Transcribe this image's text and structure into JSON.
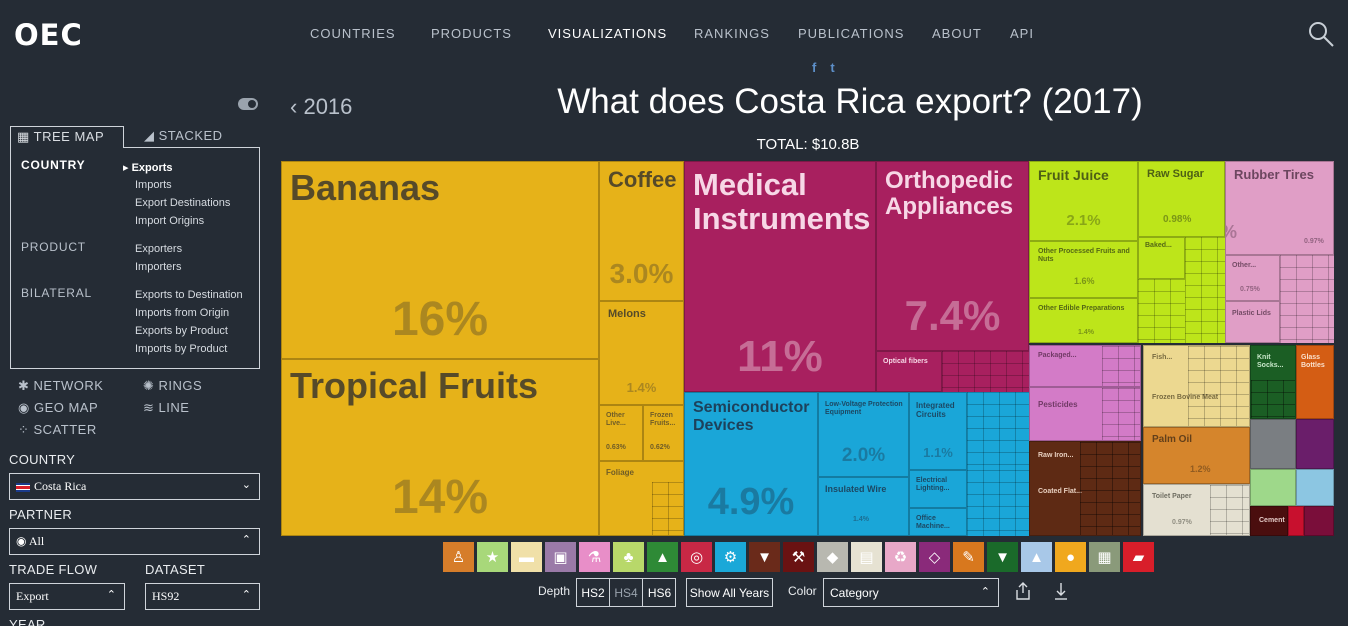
{
  "header": {
    "logo": "OEC",
    "nav": [
      "COUNTRIES",
      "PRODUCTS",
      "VISUALIZATIONS",
      "RANKINGS",
      "PUBLICATIONS",
      "ABOUT",
      "API"
    ],
    "active_nav": "VISUALIZATIONS",
    "social": {
      "facebook": "f",
      "twitter": "t"
    }
  },
  "title_area": {
    "prev_year": "2016",
    "title": "What does Costa Rica export? (2017)",
    "total": "TOTAL: $10.8B"
  },
  "sidebar": {
    "tabs": {
      "treemap": "TREE MAP",
      "stacked": "STACKED"
    },
    "categories": {
      "country": "COUNTRY",
      "product": "PRODUCT",
      "bilateral": "BILATERAL"
    },
    "country_items": [
      "Exports",
      "Imports",
      "Export Destinations",
      "Import Origins"
    ],
    "product_items": [
      "Exporters",
      "Importers"
    ],
    "bilateral_items": [
      "Exports to Destination",
      "Imports from Origin",
      "Exports by Product",
      "Imports by Product"
    ],
    "viz_types": {
      "network": "NETWORK",
      "rings": "RINGS",
      "geomap": "GEO MAP",
      "line": "LINE",
      "scatter": "SCATTER"
    },
    "filters": {
      "country_label": "COUNTRY",
      "country_value": "Costa Rica",
      "partner_label": "PARTNER",
      "partner_value": "All",
      "trade_flow_label": "TRADE FLOW",
      "trade_flow_value": "Export",
      "dataset_label": "DATASET",
      "dataset_value": "HS92",
      "year_label": "YEAR"
    }
  },
  "treemap": {
    "bananas": {
      "label": "Bananas",
      "pct": "16%"
    },
    "tropical": {
      "label": "Tropical Fruits",
      "pct": "14%"
    },
    "coffee": {
      "label": "Coffee",
      "pct": "3.0%"
    },
    "melons": {
      "label": "Melons",
      "pct": "1.4%"
    },
    "other_live": {
      "label": "Other Live...",
      "pct": "0.63%"
    },
    "frozen_fruits": {
      "label": "Frozen Fruits...",
      "pct": "0.62%"
    },
    "foliage": {
      "label": "Foliage"
    },
    "medical": {
      "label": "Medical Instruments",
      "pct": "11%"
    },
    "ortho": {
      "label": "Orthopedic Appliances",
      "pct": "7.4%"
    },
    "optical": {
      "label": "Optical fibers"
    },
    "semi": {
      "label": "Semiconductor Devices",
      "pct": "4.9%"
    },
    "lowvolt": {
      "label": "Low-Voltage Protection Equipment",
      "pct": "2.0%"
    },
    "ic": {
      "label": "Integrated Circuits",
      "pct": "1.1%"
    },
    "insulated": {
      "label": "Insulated Wire",
      "pct": "1.4%"
    },
    "electrical": {
      "label": "Electrical Lighting..."
    },
    "office": {
      "label": "Office Machine..."
    },
    "fruit_juice": {
      "label": "Fruit Juice",
      "pct": "2.1%"
    },
    "raw_sugar": {
      "label": "Raw Sugar",
      "pct": "0.98%"
    },
    "baked": {
      "label": "Baked..."
    },
    "other_processed": {
      "label": "Other Processed Fruits and Nuts",
      "pct": "1.6%"
    },
    "other_edible": {
      "label": "Other Edible Preparations",
      "pct": "1.4%"
    },
    "rubber": {
      "label": "Rubber Tires",
      "pct": "1.6%"
    },
    "rubber_small": {
      "pct": "0.97%"
    },
    "other_pink": {
      "label": "Other...",
      "pct": "0.75%"
    },
    "plastic_lids": {
      "label": "Plastic Lids"
    },
    "packaged": {
      "label": "Packaged..."
    },
    "pesticides": {
      "label": "Pesticides"
    },
    "fish": {
      "label": "Fish..."
    },
    "frozen_bovine": {
      "label": "Frozen Bovine Meat"
    },
    "knit": {
      "label": "Knit Socks..."
    },
    "glass": {
      "label": "Glass Bottles"
    },
    "palm_oil": {
      "label": "Palm Oil",
      "pct": "1.2%"
    },
    "raw_iron": {
      "label": "Raw Iron..."
    },
    "coated_flat": {
      "label": "Coated Flat..."
    },
    "toilet": {
      "label": "Toilet Paper",
      "pct": "0.97%"
    },
    "cement": {
      "label": "Cement"
    }
  },
  "category_icons": [
    {
      "name": "animal-products-icon",
      "color": "#d67d2a",
      "glyph": "♙"
    },
    {
      "name": "vegetable-products-icon",
      "color": "#a8d87a",
      "glyph": "★"
    },
    {
      "name": "animal-hides-icon",
      "color": "#f0e0a8",
      "glyph": "▬"
    },
    {
      "name": "foodstuffs-icon",
      "color": "#9a7aa8",
      "glyph": "▣"
    },
    {
      "name": "chemical-products-icon",
      "color": "#e88ec8",
      "glyph": "⚗"
    },
    {
      "name": "wood-products-icon",
      "color": "#b8d86a",
      "glyph": "♣"
    },
    {
      "name": "footwear-icon",
      "color": "#2e8a36",
      "glyph": "▲"
    },
    {
      "name": "textiles-icon",
      "color": "#c82845",
      "glyph": "◎"
    },
    {
      "name": "machines-icon",
      "color": "#1aa8d8",
      "glyph": "⚙"
    },
    {
      "name": "metals-icon",
      "color": "#6a2a1a",
      "glyph": "▼"
    },
    {
      "name": "mineral-products-icon",
      "color": "#6a1212",
      "glyph": "⚒"
    },
    {
      "name": "stone-icon",
      "color": "#b8b8b0",
      "glyph": "◆"
    },
    {
      "name": "paper-goods-icon",
      "color": "#e6e2d2",
      "glyph": "▤"
    },
    {
      "name": "plastics-icon",
      "color": "#e8a8c8",
      "glyph": "♻"
    },
    {
      "name": "precious-metals-icon",
      "color": "#8a2a7a",
      "glyph": "◇"
    },
    {
      "name": "instruments-icon",
      "color": "#d8781e",
      "glyph": "✎"
    },
    {
      "name": "textiles-shirt-icon",
      "color": "#1a6a2a",
      "glyph": "▼"
    },
    {
      "name": "transportation-icon",
      "color": "#a8c8e8",
      "glyph": "▲"
    },
    {
      "name": "arts-icon",
      "color": "#f0a81e",
      "glyph": "●"
    },
    {
      "name": "weapons-icon",
      "color": "#8a9a7a",
      "glyph": "▦"
    },
    {
      "name": "misc-icon",
      "color": "#d81e2a",
      "glyph": "▰"
    }
  ],
  "controls": {
    "depth_label": "Depth",
    "hs2": "HS2",
    "hs4": "HS4",
    "hs6": "HS6",
    "show_all_years": "Show All Years",
    "color_label": "Color",
    "color_value": "Category"
  }
}
